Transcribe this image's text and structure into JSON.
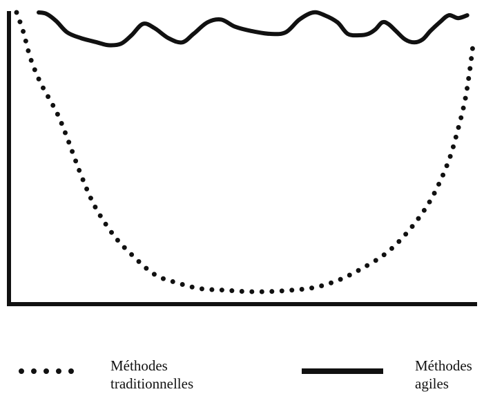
{
  "chart_data": {
    "type": "line",
    "title": "",
    "xlabel": "",
    "ylabel": "",
    "x_ticks": false,
    "y_ticks": false,
    "grid": false,
    "legend_placement": "bottom",
    "xlim": [
      0,
      100
    ],
    "ylim": [
      0,
      100
    ],
    "series": [
      {
        "name": "Méthodes traditionnelles",
        "legend_lines": [
          "Méthodes",
          "traditionnelles"
        ],
        "style": "dotted",
        "color": "#111111",
        "x": [
          0,
          1.5,
          3,
          5,
          7,
          9,
          11,
          14,
          17,
          21,
          25,
          30,
          35,
          40,
          45,
          50,
          55,
          60,
          65,
          70,
          75,
          80,
          84,
          88,
          91,
          94,
          96,
          97.5,
          98.5,
          99.3
        ],
        "y": [
          100,
          93,
          84,
          76,
          70,
          64,
          56,
          43,
          32,
          22,
          15,
          8,
          5,
          3,
          2.5,
          2,
          2,
          2.5,
          3.5,
          6,
          10,
          15,
          21,
          29,
          37,
          48,
          59,
          69,
          79,
          89
        ]
      },
      {
        "name": "Méthodes agiles",
        "legend_lines": [
          "Méthodes",
          "agiles"
        ],
        "style": "solid",
        "color": "#111111",
        "x": [
          4.8,
          6.5,
          8.6,
          11,
          14,
          17.5,
          20,
          22.7,
          25,
          27.5,
          30,
          33,
          36,
          38.5,
          41.5,
          44.5,
          47.5,
          51,
          55,
          58.5,
          61.5,
          64.5,
          67,
          69.8,
          72,
          74.5,
          76.5,
          78,
          79.5,
          80.8,
          82.5,
          84.5,
          86.5,
          88.3,
          90,
          92,
          94,
          96,
          98
        ],
        "y": [
          100,
          99.5,
          97,
          93,
          91,
          89.5,
          88.5,
          89,
          92,
          96,
          94.5,
          91,
          89.5,
          92.5,
          96.5,
          97.5,
          95,
          93.5,
          92.5,
          93,
          97.5,
          100,
          99,
          96.5,
          92.5,
          92,
          92.5,
          94,
          96.5,
          96,
          93.5,
          90.5,
          89.5,
          90.5,
          93.5,
          96.5,
          99,
          98,
          99
        ]
      }
    ]
  }
}
